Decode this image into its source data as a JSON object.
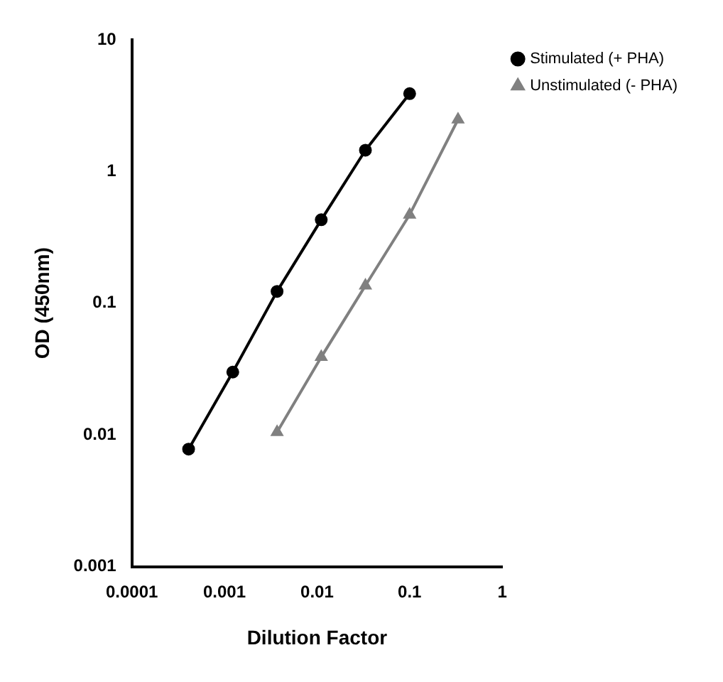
{
  "chart_data": {
    "type": "line",
    "xlabel": "Dilution Factor",
    "ylabel": "OD (450nm)",
    "log": "xy",
    "xlim": [
      0.0001,
      1
    ],
    "ylim": [
      0.001,
      10
    ],
    "xticks": [
      0.0001,
      0.001,
      0.01,
      0.1,
      1
    ],
    "yticks": [
      0.001,
      0.01,
      0.1,
      1,
      10
    ],
    "grid": false,
    "legend": "top right",
    "line_style": "solid",
    "series": [
      {
        "name": "Stimulated (+ PHA)",
        "color": "#000000",
        "marker": "circle",
        "x": [
          0.00041,
          0.00123,
          0.0037,
          0.0111,
          0.0333,
          0.1
        ],
        "values": [
          0.0078,
          0.03,
          0.123,
          0.43,
          1.45,
          3.9
        ]
      },
      {
        "name": "Unstimulated (- PHA)",
        "color": "#808080",
        "marker": "triangle",
        "x": [
          0.0037,
          0.0111,
          0.0333,
          0.1,
          0.333
        ],
        "values": [
          0.0105,
          0.039,
          0.136,
          0.47,
          2.48
        ]
      }
    ]
  }
}
